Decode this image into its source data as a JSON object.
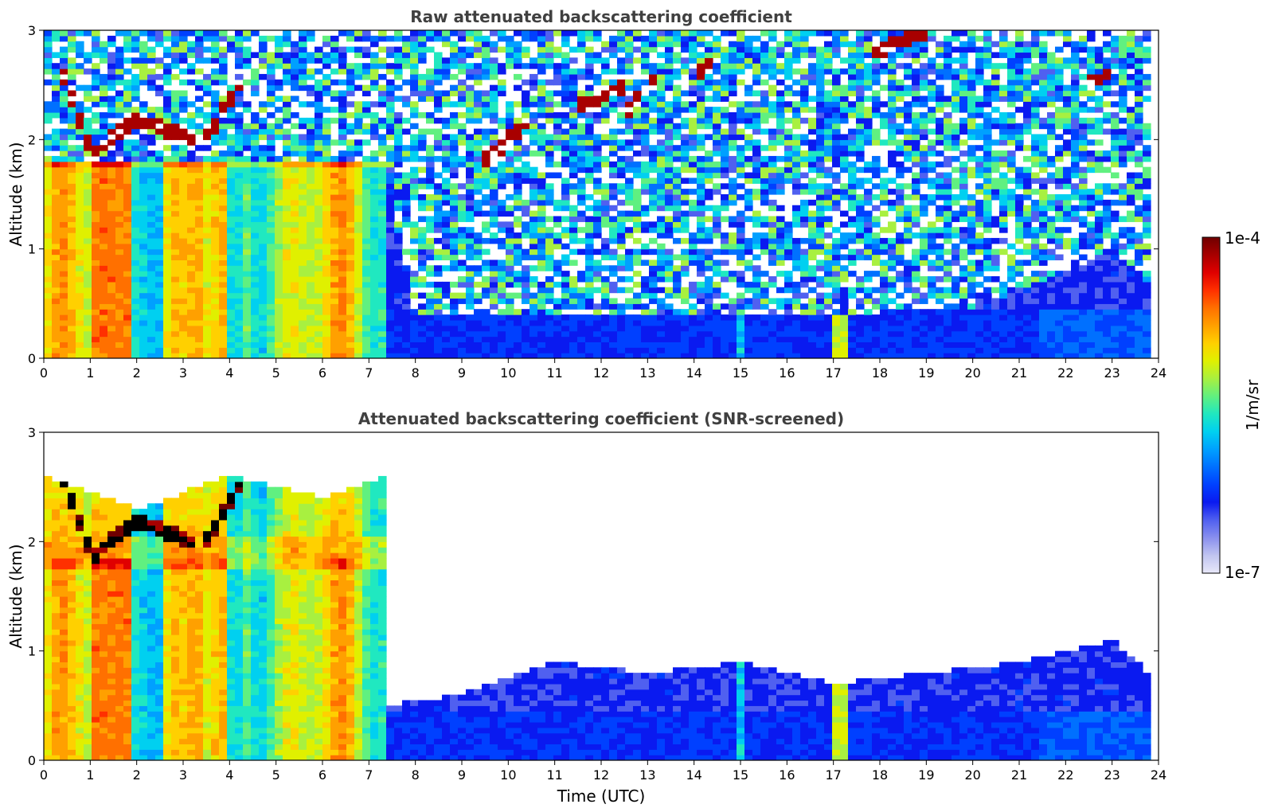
{
  "chart_data": [
    {
      "type": "heatmap",
      "title": "Raw attenuated backscattering coefficient",
      "xlabel": "",
      "ylabel": "Altitude (km)",
      "xlim": [
        0,
        24
      ],
      "ylim": [
        0,
        3
      ],
      "xticks": [
        "0",
        "1",
        "2",
        "3",
        "4",
        "5",
        "6",
        "7",
        "8",
        "9",
        "10",
        "11",
        "12",
        "13",
        "14",
        "15",
        "16",
        "17",
        "18",
        "19",
        "20",
        "21",
        "22",
        "23",
        "24"
      ],
      "yticks": [
        "0",
        "1",
        "2",
        "3"
      ],
      "time_coverage_h": [
        0,
        23.8
      ],
      "aerosol_layer_top_km": [
        {
          "x": 0,
          "y": 1.8
        },
        {
          "x": 2,
          "y": 1.8
        },
        {
          "x": 4,
          "y": 1.8
        },
        {
          "x": 6,
          "y": 1.8
        },
        {
          "x": 7.3,
          "y": 1.8
        },
        {
          "x": 8,
          "y": 0.4
        },
        {
          "x": 12,
          "y": 0.4
        },
        {
          "x": 16,
          "y": 0.4
        },
        {
          "x": 20,
          "y": 0.45
        },
        {
          "x": 22,
          "y": 0.8
        },
        {
          "x": 23,
          "y": 1.0
        },
        {
          "x": 23.8,
          "y": 0.7
        }
      ],
      "cloud_features": [
        {
          "x": [
            0.4,
            1.0
          ],
          "y": [
            2.6,
            1.9
          ]
        },
        {
          "x": [
            1.0,
            2.0
          ],
          "y": [
            1.85,
            2.2
          ]
        },
        {
          "x": [
            2.0,
            3.2
          ],
          "y": [
            2.2,
            2.0
          ]
        },
        {
          "x": [
            3.5,
            4.2
          ],
          "y": [
            2.0,
            2.5
          ]
        },
        {
          "x": [
            9.5,
            10.5
          ],
          "y": [
            1.8,
            2.2
          ]
        },
        {
          "x": [
            11.5,
            12.5
          ],
          "y": [
            2.3,
            2.5
          ]
        },
        {
          "x": [
            12.5,
            13.2
          ],
          "y": [
            2.2,
            2.6
          ]
        },
        {
          "x": [
            14.0,
            14.4
          ],
          "y": [
            2.6,
            2.7
          ]
        },
        {
          "x": [
            17.9,
            19.0
          ],
          "y": [
            2.8,
            3.0
          ]
        },
        {
          "x": [
            22.5,
            22.9
          ],
          "y": [
            2.5,
            2.6
          ]
        }
      ]
    },
    {
      "type": "heatmap",
      "title": "Attenuated backscattering coefficient (SNR-screened)",
      "xlabel": "Time (UTC)",
      "ylabel": "Altitude (km)",
      "xlim": [
        0,
        24
      ],
      "ylim": [
        0,
        3
      ],
      "xticks": [
        "0",
        "1",
        "2",
        "3",
        "4",
        "5",
        "6",
        "7",
        "8",
        "9",
        "10",
        "11",
        "12",
        "13",
        "14",
        "15",
        "16",
        "17",
        "18",
        "19",
        "20",
        "21",
        "22",
        "23",
        "24"
      ],
      "yticks": [
        "0",
        "1",
        "2",
        "3"
      ],
      "time_coverage_h": [
        0,
        23.8
      ],
      "valid_data_top_km": [
        {
          "x": 0,
          "y": 2.6
        },
        {
          "x": 2,
          "y": 2.3
        },
        {
          "x": 4,
          "y": 2.6
        },
        {
          "x": 6,
          "y": 2.4
        },
        {
          "x": 7.3,
          "y": 2.6
        },
        {
          "x": 7.4,
          "y": 0.5
        },
        {
          "x": 9,
          "y": 0.6
        },
        {
          "x": 11,
          "y": 0.9
        },
        {
          "x": 13,
          "y": 0.8
        },
        {
          "x": 15,
          "y": 0.9
        },
        {
          "x": 17,
          "y": 0.7
        },
        {
          "x": 19,
          "y": 0.8
        },
        {
          "x": 21,
          "y": 0.9
        },
        {
          "x": 23,
          "y": 1.1
        },
        {
          "x": 23.8,
          "y": 0.8
        }
      ]
    }
  ],
  "colorbar": {
    "label": "1/m/sr",
    "max_label": "1e-4",
    "min_label": "1e-7",
    "colors": [
      "#e8e8f8",
      "#c0c4f0",
      "#8a90ee",
      "#5060f0",
      "#0a1af0",
      "#0040ff",
      "#0070ff",
      "#00a0ff",
      "#00d0f0",
      "#20e8c0",
      "#60f080",
      "#a8f040",
      "#e0f000",
      "#ffd000",
      "#ffa000",
      "#ff7000",
      "#ff3000",
      "#e00000",
      "#a80000",
      "#700000"
    ]
  }
}
